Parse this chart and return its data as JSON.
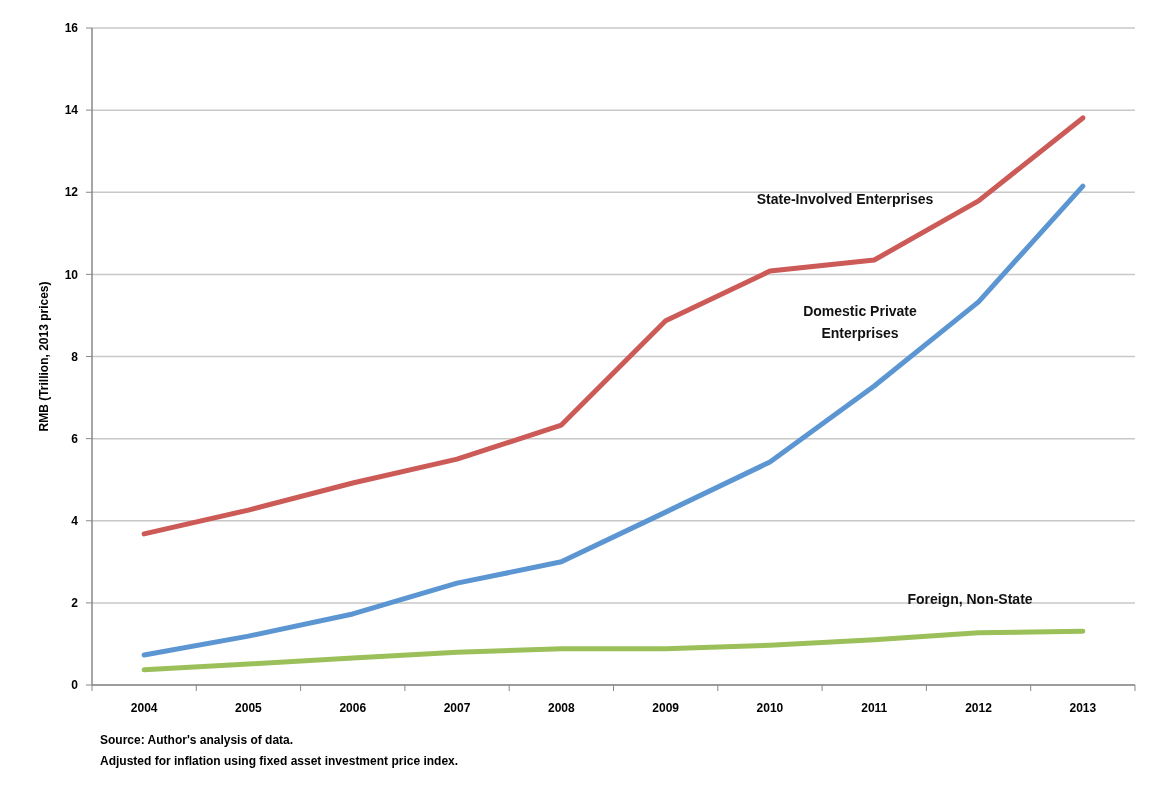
{
  "chart_data": {
    "type": "line",
    "ylabel": "RMB (Trillion, 2013 prices)",
    "categories": [
      "2004",
      "2005",
      "2006",
      "2007",
      "2008",
      "2009",
      "2010",
      "2011",
      "2012",
      "2013"
    ],
    "series": [
      {
        "name": "State-Involved Enterprises",
        "color": "#cc5b57",
        "values": [
          3.68,
          4.26,
          4.92,
          5.5,
          6.33,
          8.87,
          10.08,
          10.35,
          11.79,
          13.81
        ]
      },
      {
        "name": "Domestic Private Enterprises",
        "color": "#5b96d2",
        "values": [
          0.73,
          1.19,
          1.73,
          2.48,
          3.0,
          4.21,
          5.43,
          7.28,
          9.33,
          12.15
        ]
      },
      {
        "name": "Foreign, Non-State",
        "color": "#9bc05a",
        "values": [
          0.37,
          0.51,
          0.66,
          0.8,
          0.88,
          0.88,
          0.97,
          1.1,
          1.27,
          1.31
        ]
      }
    ],
    "ylim": [
      0,
      16
    ],
    "yticks": [
      0,
      2,
      4,
      6,
      8,
      10,
      12,
      14,
      16
    ],
    "grid": "y",
    "marker": "none",
    "line_style": "solid",
    "annotations": [
      "Source: Author's analysis of data.",
      "Adjusted for inflation using fixed asset investment price index."
    ]
  }
}
